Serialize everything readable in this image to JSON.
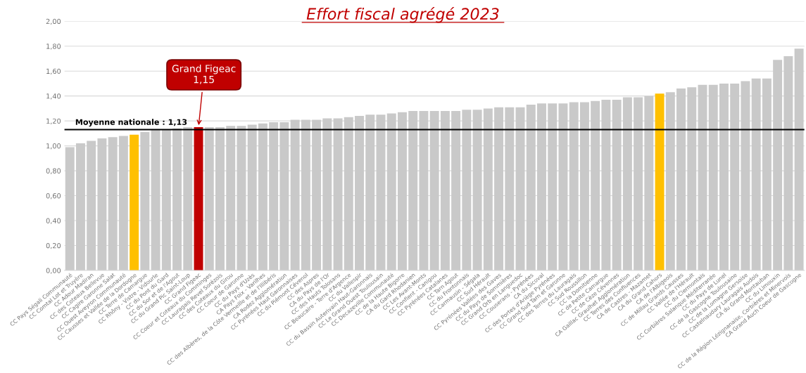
{
  "chart_data": {
    "type": "bar",
    "title": "Effort fiscal agrégé 2023",
    "categories": [
      "CC Pays Ségali Communauté",
      "CC Comtal Lot et Truyère",
      "CC Adour Madiran",
      "CC des Coteaux Bellevue",
      "CC Cagire Garonne Salat",
      "CC Ouest Aveyron Communauté",
      "CC Causses et Vallée de la Dordogne",
      "CC Terre de Camargue",
      "CC Rhôny - Vistre - Vidourle",
      "CC du Pont du Gard",
      "CC du Sor et de l'Agout",
      "CC du Grand Pic Saint-Loup",
      "CC Grand Figeac",
      "CC Coeur et Coteaux du Comminges",
      "CC Lauragais Revel Sorézois",
      "CC des Coteaux du Girou",
      "CC Coeur de Garonne",
      "CC du Pays d'Uzès",
      "CA Pays Foix - Varilhes",
      "CC des Albères, de la Côte Vermeille et de l'Illibéris",
      "CA Rodez Agglomération",
      "CC Pyrénées Haut Garonnaises",
      "CC du Piémont Cévenol",
      "CC des Aspres",
      "CA du Pays de l'Or",
      "CC des Hauts Tolosans",
      "CC Beaucaire - Terre d'Argence",
      "CC du Vallespir",
      "CC du Bassin Auterivain Haut-Garonnais",
      "CC Le Grand Ouest Toulousain",
      "CC Decazeville Communauté",
      "CC de la Haute Bigorre",
      "CA du Gard Rhodanien",
      "CC Les Avant-Monts",
      "CC Conflent - Canigou",
      "CC Pyrénées Catalanes",
      "CC Tarn Agout",
      "CC du Frontonnais",
      "CC Carmausin - Ségala",
      "CC Sud Hérault",
      "CC Pyrénées Vallées des Gaves",
      "CC du Pays de Sommières",
      "CC Grand Orb en Languedoc",
      "CC Couserans - Pyrénées",
      "CA du Sicoval",
      "CC des Portes d'Ariège Pyrénées",
      "CC Grand Sud Tarn et Garonne",
      "CC des Terres du Lauragais",
      "CC Sud Roussillon",
      "CC la Domitienne",
      "CC de Petite Camargue",
      "CC de Cèze Cévennes",
      "CA Gaillac Graulhet Agglomération",
      "CC Terres des Confluences",
      "CA de Castres - Mazamet",
      "CA du Grand Cahors",
      "CA de l'Albigeois",
      "CC de Millau Grands Causses",
      "CC Vallée de l'Hérault",
      "CC du Clermontais",
      "CC Corbières Salanque Méditerranée",
      "CC du Pays de Lunel",
      "CC de la Gascogne Toulousaine",
      "CC de la Lomagne Gersoise",
      "CC Castelnaudary Lauragais Audois",
      "CA du Grand Montauban",
      "CC du Limouxin",
      "CC de la Région Lézignanaise, Corbières et Minervois",
      "CA Grand Auch Coeur de Gascogne"
    ],
    "values": [
      0.99,
      1.02,
      1.04,
      1.06,
      1.07,
      1.08,
      1.09,
      1.11,
      1.13,
      1.13,
      1.14,
      1.15,
      1.15,
      1.15,
      1.15,
      1.16,
      1.16,
      1.17,
      1.18,
      1.19,
      1.19,
      1.21,
      1.21,
      1.21,
      1.22,
      1.22,
      1.23,
      1.24,
      1.25,
      1.25,
      1.26,
      1.27,
      1.28,
      1.28,
      1.28,
      1.28,
      1.28,
      1.29,
      1.29,
      1.3,
      1.31,
      1.31,
      1.31,
      1.33,
      1.34,
      1.34,
      1.34,
      1.35,
      1.35,
      1.36,
      1.37,
      1.37,
      1.39,
      1.39,
      1.4,
      1.42,
      1.43,
      1.46,
      1.47,
      1.49,
      1.49,
      1.5,
      1.5,
      1.52,
      1.54,
      1.54,
      1.69,
      1.72,
      1.78
    ],
    "colors": [
      "#c9c9c9",
      "#c9c9c9",
      "#c9c9c9",
      "#c9c9c9",
      "#c9c9c9",
      "#c9c9c9",
      "#ffc000",
      "#c9c9c9",
      "#c9c9c9",
      "#c9c9c9",
      "#c9c9c9",
      "#c9c9c9",
      "#c00000",
      "#c9c9c9",
      "#c9c9c9",
      "#c9c9c9",
      "#c9c9c9",
      "#c9c9c9",
      "#c9c9c9",
      "#c9c9c9",
      "#c9c9c9",
      "#c9c9c9",
      "#c9c9c9",
      "#c9c9c9",
      "#c9c9c9",
      "#c9c9c9",
      "#c9c9c9",
      "#c9c9c9",
      "#c9c9c9",
      "#c9c9c9",
      "#c9c9c9",
      "#c9c9c9",
      "#c9c9c9",
      "#c9c9c9",
      "#c9c9c9",
      "#c9c9c9",
      "#c9c9c9",
      "#c9c9c9",
      "#c9c9c9",
      "#c9c9c9",
      "#c9c9c9",
      "#c9c9c9",
      "#c9c9c9",
      "#c9c9c9",
      "#c9c9c9",
      "#c9c9c9",
      "#c9c9c9",
      "#c9c9c9",
      "#c9c9c9",
      "#c9c9c9",
      "#c9c9c9",
      "#c9c9c9",
      "#c9c9c9",
      "#c9c9c9",
      "#c9c9c9",
      "#ffc000",
      "#c9c9c9",
      "#c9c9c9",
      "#c9c9c9",
      "#c9c9c9",
      "#c9c9c9",
      "#c9c9c9",
      "#c9c9c9",
      "#c9c9c9",
      "#c9c9c9",
      "#c9c9c9",
      "#c9c9c9",
      "#c9c9c9",
      "#c9c9c9"
    ],
    "ylim": [
      0,
      2
    ],
    "yticks": [
      {
        "value": 0,
        "label": "0,00"
      },
      {
        "value": 0.2,
        "label": "0,20"
      },
      {
        "value": 0.4,
        "label": "0,40"
      },
      {
        "value": 0.6,
        "label": "0,60"
      },
      {
        "value": 0.8,
        "label": "0,80"
      },
      {
        "value": 1.0,
        "label": "1,00"
      },
      {
        "value": 1.2,
        "label": "1,20"
      },
      {
        "value": 1.4,
        "label": "1,40"
      },
      {
        "value": 1.6,
        "label": "1,60"
      },
      {
        "value": 1.8,
        "label": "1,80"
      },
      {
        "value": 2.0,
        "label": "2,00"
      }
    ],
    "grid": "y",
    "ref_lines": [
      {
        "axis": "y",
        "value": 1.13,
        "label": "Moyenne nationale : 1,13",
        "color": "#000000"
      }
    ],
    "annotations": [
      {
        "text": "Grand Figeac\n1,15",
        "x": "CC Grand Figeac",
        "y": 1.15
      }
    ]
  }
}
